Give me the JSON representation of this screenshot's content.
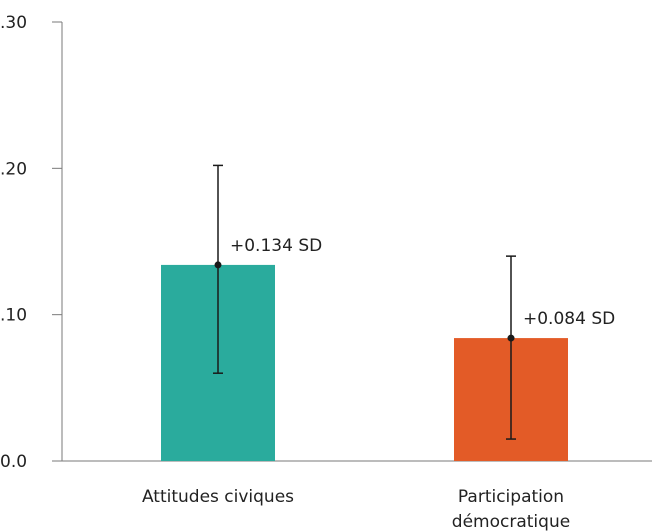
{
  "chart_data": {
    "type": "bar",
    "categories": [
      "Attitudes civiques",
      "Participation démocratique"
    ],
    "category_lines": [
      [
        "Attitudes civiques"
      ],
      [
        "Participation",
        "démocratique"
      ]
    ],
    "values": [
      0.134,
      0.084
    ],
    "error_low": [
      0.06,
      0.015
    ],
    "error_high": [
      0.202,
      0.14
    ],
    "data_labels": [
      "+0.134 SD",
      "+0.084 SD"
    ],
    "colors": [
      "#2aab9d",
      "#e35b27"
    ],
    "ylim": [
      0,
      0.3
    ],
    "yticks": [
      0,
      0.1,
      0.2,
      0.3
    ],
    "ytick_labels": [
      "0.0",
      ".10",
      ".20",
      ".30"
    ],
    "title": "",
    "xlabel": "",
    "ylabel": "",
    "grid": false,
    "legend": "none"
  }
}
